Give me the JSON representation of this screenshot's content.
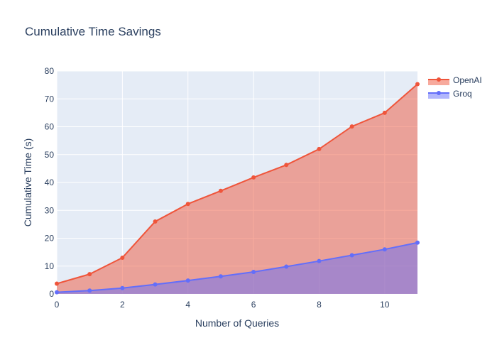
{
  "chart_data": {
    "type": "area",
    "title": "Cumulative Time Savings",
    "xlabel": "Number of Queries",
    "ylabel": "Cumulative Time (s)",
    "xlim": [
      0,
      11
    ],
    "ylim": [
      0,
      80
    ],
    "x_ticks": [
      0,
      2,
      4,
      6,
      8,
      10
    ],
    "y_ticks": [
      0,
      10,
      20,
      30,
      40,
      50,
      60,
      70,
      80
    ],
    "grid": true,
    "legend_position": "top-right",
    "x": [
      0,
      1,
      2,
      3,
      4,
      5,
      6,
      7,
      8,
      9,
      10,
      11
    ],
    "series": [
      {
        "name": "OpenAI",
        "color": "#EF553B",
        "fill_color": "rgba(239,85,59,0.5)",
        "values": [
          3.7,
          7.1,
          13.0,
          26.0,
          32.3,
          37.0,
          41.8,
          46.3,
          52.0,
          60.1,
          65.0,
          75.3
        ]
      },
      {
        "name": "Groq",
        "color": "#636EFA",
        "fill_color": "rgba(99,110,250,0.5)",
        "values": [
          0.6,
          1.2,
          2.1,
          3.4,
          4.8,
          6.3,
          7.9,
          9.8,
          11.8,
          13.9,
          16.0,
          18.4
        ]
      }
    ],
    "plot_background": "#E5ECF6"
  }
}
